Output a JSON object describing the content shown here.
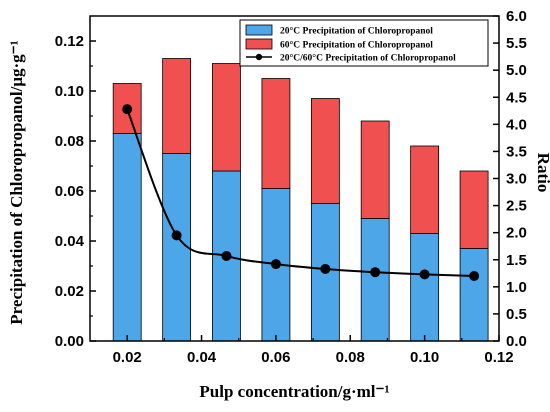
{
  "chart_data": {
    "type": "bar",
    "stacked": true,
    "xlabel": "Pulp concentration/g·ml⁻¹",
    "ylabel": "Precipitation of Chloropropanol/μg·g⁻¹",
    "y2label": "Ratio",
    "xlim": [
      0.01,
      0.12
    ],
    "ylim": [
      0,
      0.13
    ],
    "y2lim": [
      0,
      6.0
    ],
    "xticks": [
      0.02,
      0.04,
      0.06,
      0.08,
      0.1,
      0.12
    ],
    "xtick_labels": [
      "0.02",
      "0.04",
      "0.06",
      "0.08",
      "0.10",
      "0.12"
    ],
    "yticks": [
      0.0,
      0.02,
      0.04,
      0.06,
      0.08,
      0.1,
      0.12
    ],
    "ytick_labels": [
      "0.00",
      "0.02",
      "0.04",
      "0.06",
      "0.08",
      "0.10",
      "0.12"
    ],
    "y2ticks": [
      0.0,
      0.5,
      1.0,
      1.5,
      2.0,
      2.5,
      3.0,
      3.5,
      4.0,
      4.5,
      5.0,
      5.5,
      6.0
    ],
    "y2tick_labels": [
      "0.0",
      "0.5",
      "1.0",
      "1.5",
      "2.0",
      "2.5",
      "3.0",
      "3.5",
      "4.0",
      "4.5",
      "5.0",
      "5.5",
      "6.0"
    ],
    "x": [
      0.02,
      0.0333,
      0.0467,
      0.06,
      0.0733,
      0.0867,
      0.1,
      0.1133
    ],
    "series": [
      {
        "name": "20°C Precipitation of Chloropropanol",
        "kind": "bar",
        "axis": "left",
        "color": "#4da6e8",
        "values": [
          0.083,
          0.075,
          0.068,
          0.061,
          0.055,
          0.049,
          0.043,
          0.037
        ]
      },
      {
        "name": "60°C Precipitation of Chloropropanol",
        "kind": "bar",
        "axis": "left",
        "stack_on": 0,
        "color": "#f05050",
        "values": [
          0.02,
          0.038,
          0.043,
          0.044,
          0.042,
          0.039,
          0.035,
          0.031
        ]
      },
      {
        "name": "20°C/60°C Precipitation of Chloropropanol",
        "kind": "line",
        "axis": "right",
        "color": "#000000",
        "values": [
          4.28,
          1.95,
          1.57,
          1.42,
          1.33,
          1.27,
          1.23,
          1.2
        ]
      }
    ],
    "legend_position": "top-right",
    "grid": false
  }
}
